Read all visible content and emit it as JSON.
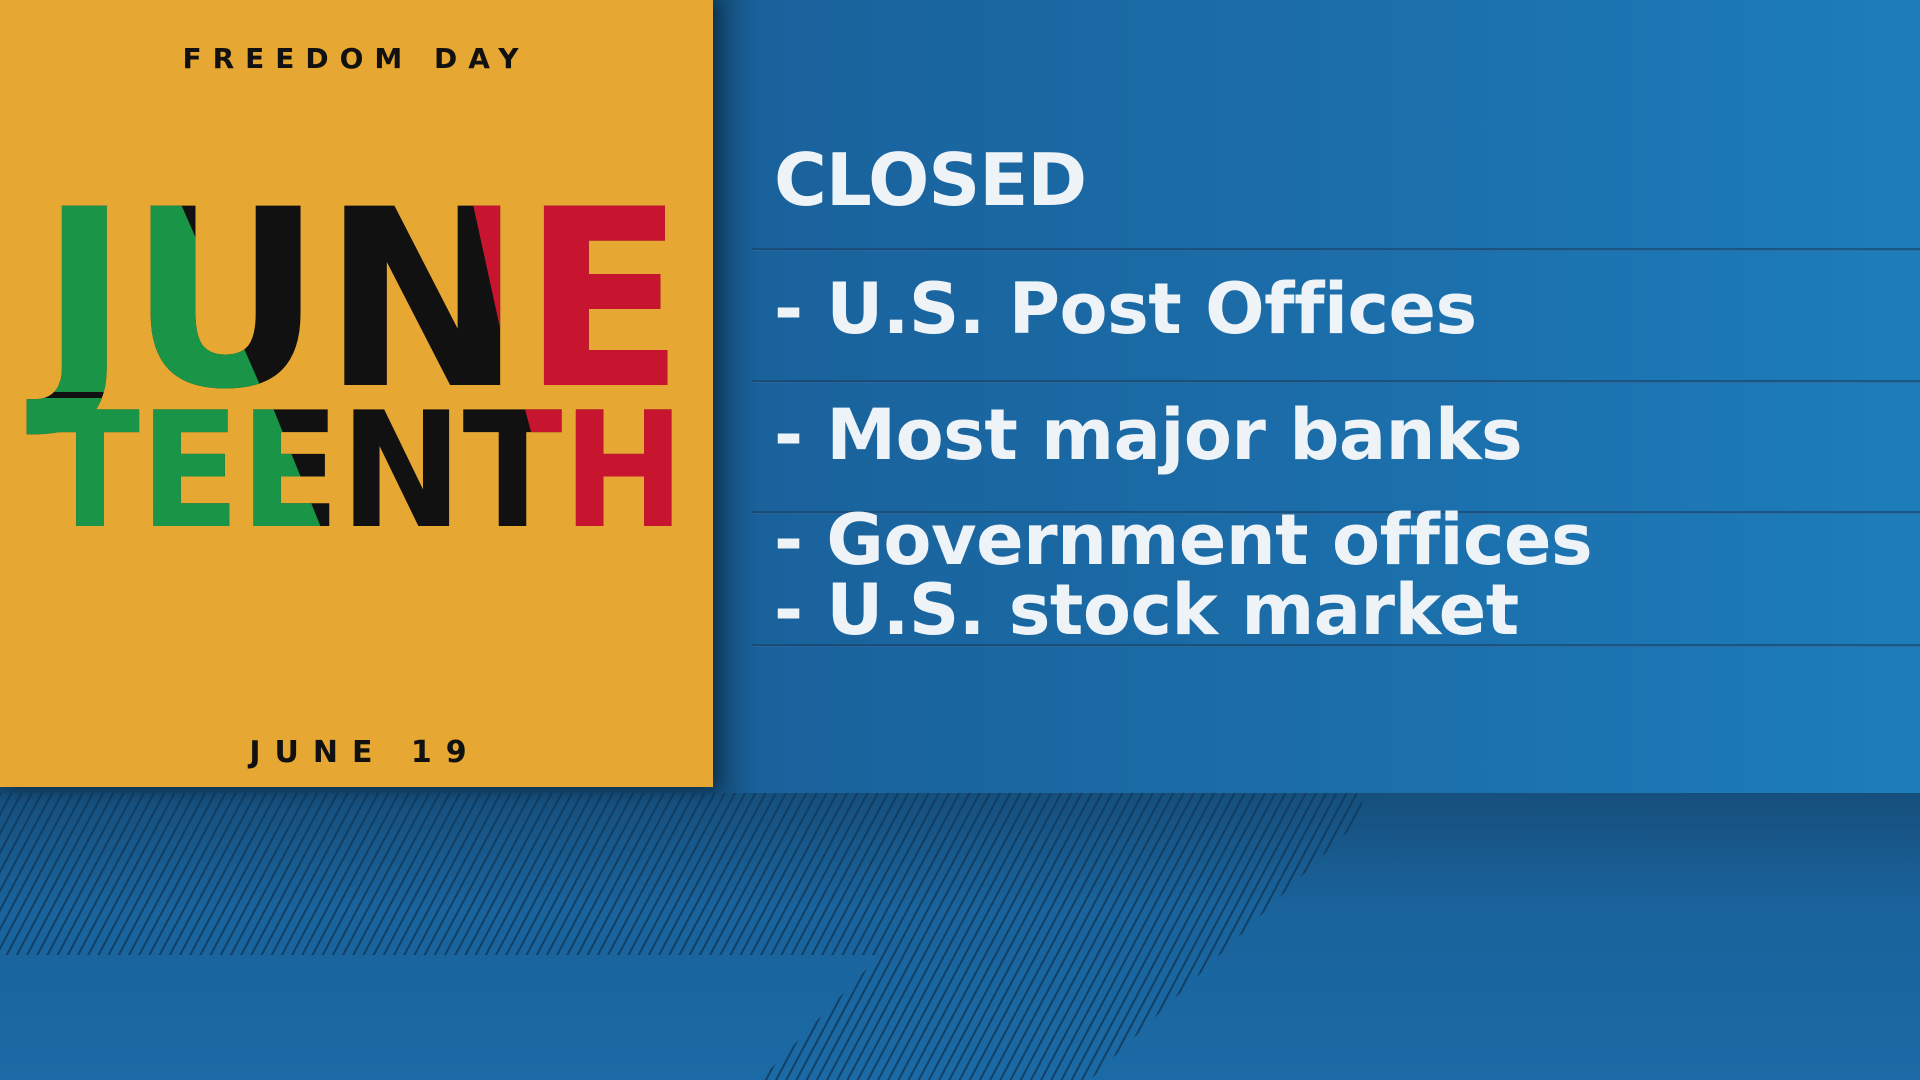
{
  "poster": {
    "top_text": "FREEDOM DAY",
    "title_line1": "JUNE",
    "title_line2": "TEENTH",
    "bottom_text": "JUNE 19",
    "colors": {
      "background": "#e6a733",
      "green": "#1a9447",
      "black": "#111111",
      "red": "#c8152f"
    }
  },
  "panel": {
    "heading": "CLOSED",
    "items": [
      "- U.S. Post Offices",
      "- Most major banks",
      "- Government offices",
      "- U.S. stock market"
    ]
  },
  "colors": {
    "background_blue": "#1b6aa5",
    "text": "#eef3f8"
  }
}
